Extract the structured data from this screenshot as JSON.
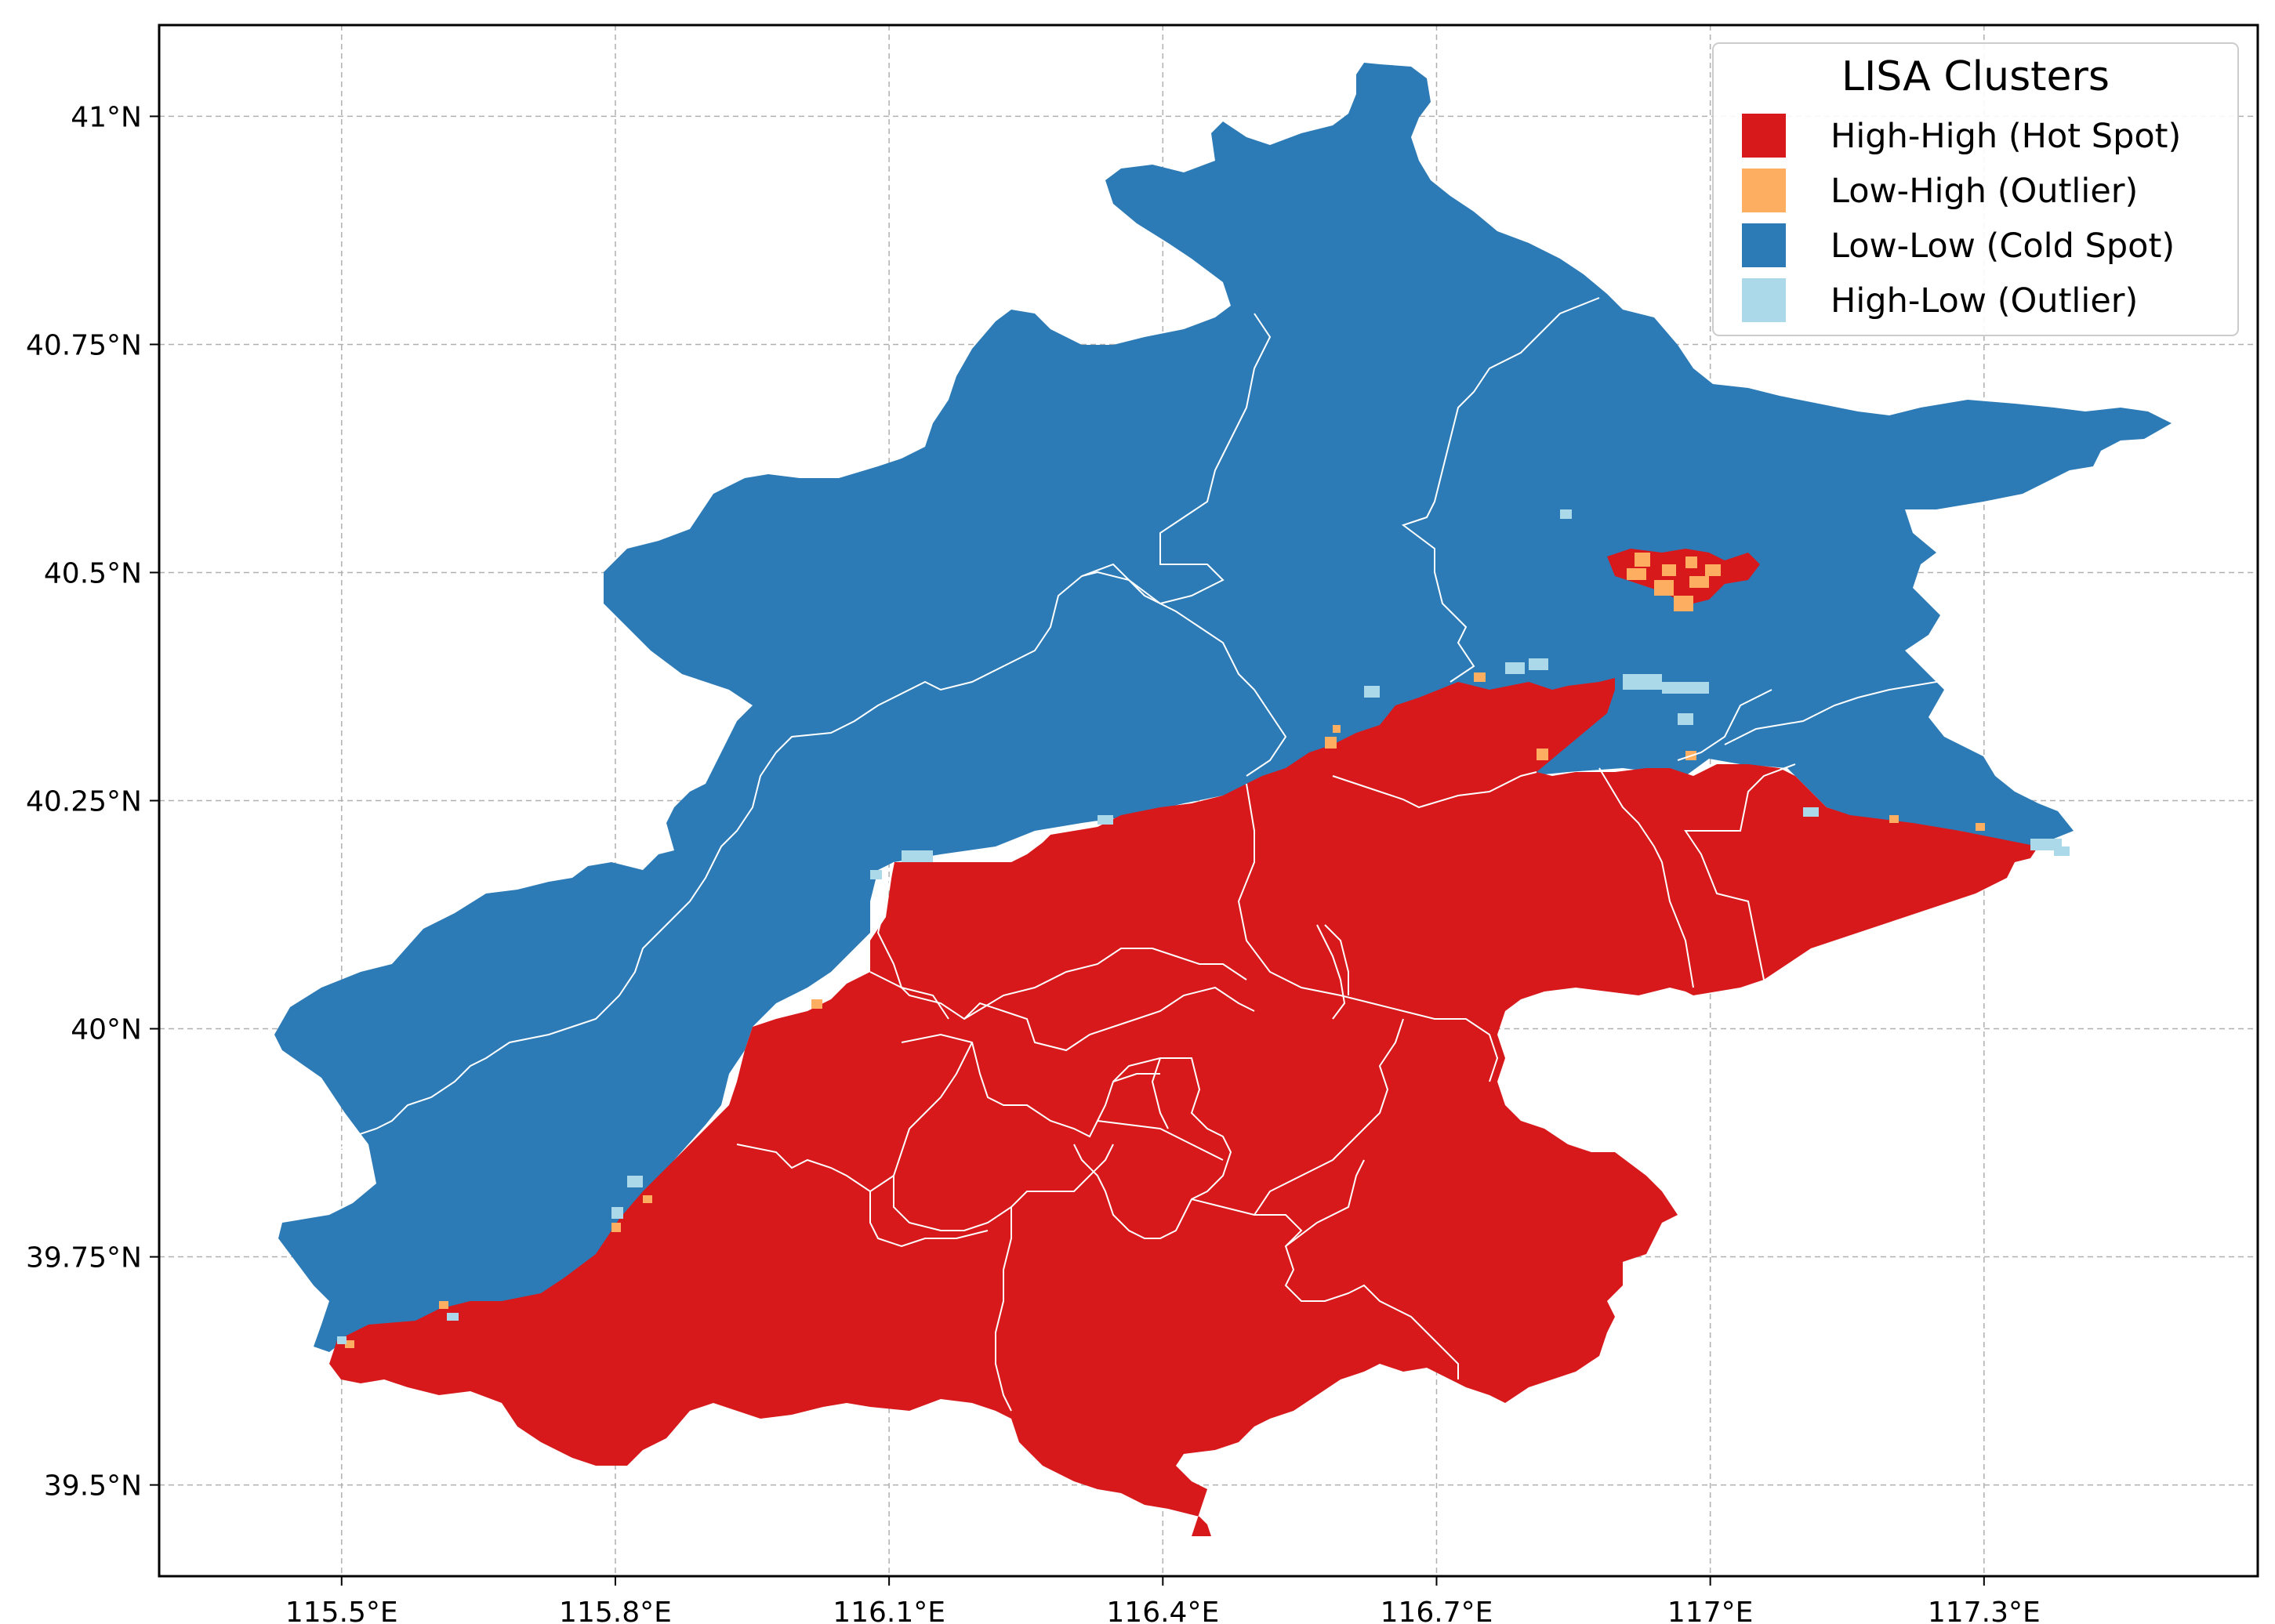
{
  "map": {
    "lon_ticks": [
      "115.5°E",
      "115.8°E",
      "116.1°E",
      "116.4°E",
      "116.7°E",
      "117°E",
      "117.3°E"
    ],
    "lat_ticks": [
      "41°N",
      "40.75°N",
      "40.5°N",
      "40.25°N",
      "40°N",
      "39.75°N",
      "39.5°N"
    ],
    "lon_tick_values": [
      115.5,
      115.8,
      116.1,
      116.4,
      116.7,
      117.0,
      117.3
    ],
    "lat_tick_values": [
      41.0,
      40.75,
      40.5,
      40.25,
      40.0,
      39.75,
      39.5
    ],
    "extent": {
      "lon": [
        115.3,
        117.6
      ],
      "lat": [
        39.4,
        41.1
      ]
    },
    "gridlines": true
  },
  "legend": {
    "title": "LISA Clusters",
    "placement": "top-right",
    "items": [
      {
        "label": "High-High (Hot Spot)",
        "color": "#d7191c"
      },
      {
        "label": "Low-High (Outlier)",
        "color": "#fdae61"
      },
      {
        "label": "Low-Low (Cold Spot)",
        "color": "#2c7bb6"
      },
      {
        "label": "High-Low (Outlier)",
        "color": "#abd9e9"
      }
    ]
  },
  "colors": {
    "hot_spot": "#d7191c",
    "low_high": "#fdae61",
    "cold_spot": "#2c7bb6",
    "high_low": "#abd9e9",
    "boundary": "#ffffff",
    "grid": "#b0b0b0"
  }
}
